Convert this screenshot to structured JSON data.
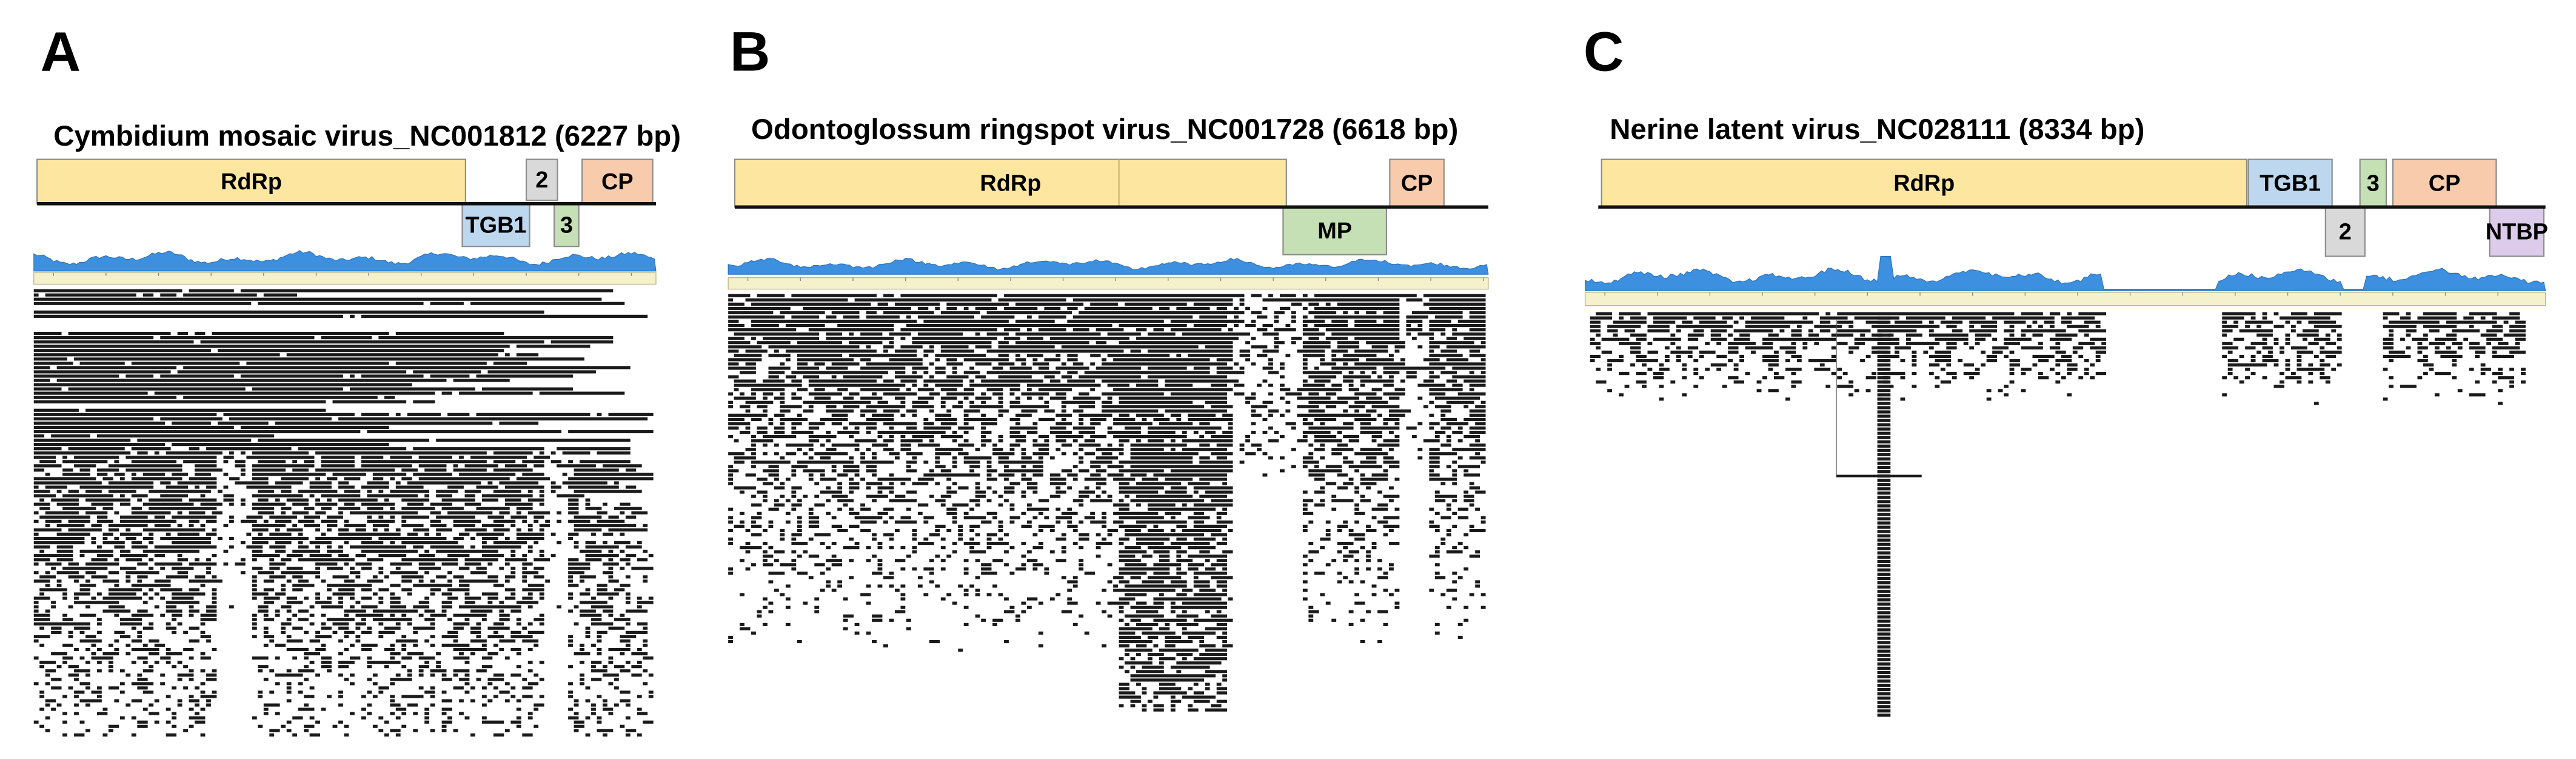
{
  "panels": [
    {
      "label": "A",
      "title": "Cymbidium mosaic virus_NC001812 (6227 bp)",
      "genes": [
        {
          "name": "RdRp"
        },
        {
          "name": "2"
        },
        {
          "name": "CP"
        },
        {
          "name": "TGB1"
        },
        {
          "name": "3"
        }
      ]
    },
    {
      "label": "B",
      "title": "Odontoglossum ringspot virus_NC001728 (6618 bp)",
      "genes": [
        {
          "name": "RdRp"
        },
        {
          "name": "CP"
        },
        {
          "name": "MP"
        }
      ]
    },
    {
      "label": "C",
      "title": "Nerine latent virus_NC028111 (8334 bp)",
      "genes": [
        {
          "name": "RdRp"
        },
        {
          "name": "TGB1"
        },
        {
          "name": "3"
        },
        {
          "name": "CP"
        },
        {
          "name": "2"
        },
        {
          "name": "NTBP"
        }
      ]
    }
  ]
}
